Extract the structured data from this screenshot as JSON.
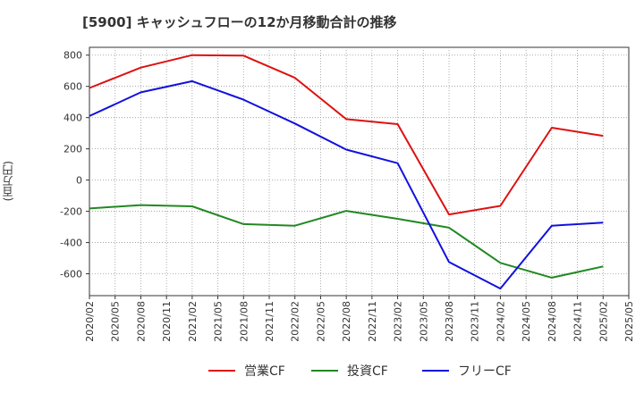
{
  "chart_data": {
    "type": "line",
    "title": "[5900]  キャッシュフローの12か月移動合計の推移",
    "ylabel": "(百万円)",
    "xlabel": "",
    "ylim": [
      -740,
      850
    ],
    "yticks": [
      800,
      600,
      400,
      200,
      0,
      -200,
      -400,
      -600
    ],
    "ytick_labels": [
      "800",
      "600",
      "400",
      "200",
      "0",
      "-200",
      "-400",
      "-600"
    ],
    "x_tick_labels": [
      "2020/02",
      "2020/05",
      "2020/08",
      "2020/11",
      "2021/02",
      "2021/05",
      "2021/08",
      "2021/11",
      "2022/02",
      "2022/05",
      "2022/08",
      "2022/11",
      "2023/02",
      "2023/05",
      "2023/08",
      "2023/11",
      "2024/02",
      "2024/05",
      "2024/08",
      "2024/11",
      "2025/02",
      "2025/05"
    ],
    "grid": true,
    "legend_position": "bottom",
    "series": [
      {
        "name": "営業CF",
        "color": "#dd1111",
        "points": [
          [
            0,
            590
          ],
          [
            2,
            720
          ],
          [
            4,
            800
          ],
          [
            6,
            797
          ],
          [
            8,
            655
          ],
          [
            10,
            390
          ],
          [
            12,
            358
          ],
          [
            14,
            -220
          ],
          [
            16,
            -165
          ],
          [
            18,
            335
          ],
          [
            20,
            283
          ]
        ]
      },
      {
        "name": "投資CF",
        "color": "#228822",
        "points": [
          [
            0,
            -182
          ],
          [
            2,
            -160
          ],
          [
            4,
            -168
          ],
          [
            6,
            -282
          ],
          [
            8,
            -292
          ],
          [
            10,
            -197
          ],
          [
            12,
            -248
          ],
          [
            14,
            -305
          ],
          [
            16,
            -530
          ],
          [
            18,
            -625
          ],
          [
            20,
            -553
          ]
        ]
      },
      {
        "name": "フリーCF",
        "color": "#1111dd",
        "points": [
          [
            0,
            410
          ],
          [
            2,
            562
          ],
          [
            4,
            633
          ],
          [
            6,
            515
          ],
          [
            8,
            362
          ],
          [
            10,
            195
          ],
          [
            12,
            108
          ],
          [
            14,
            -525
          ],
          [
            16,
            -695
          ],
          [
            18,
            -292
          ],
          [
            20,
            -272
          ]
        ]
      }
    ]
  }
}
